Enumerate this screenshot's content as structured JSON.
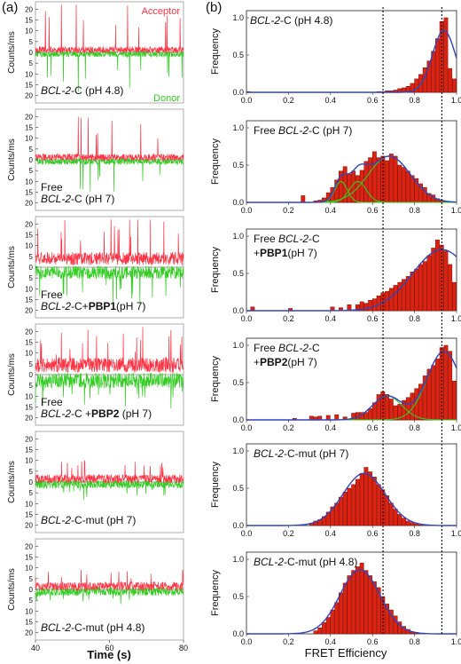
{
  "panel_labels": {
    "a": "(a)",
    "b": "(b)"
  },
  "colors": {
    "acceptor": "#ff3344",
    "donor": "#33cc22",
    "bar": "#dd2211",
    "bar_edge": "#7a1208",
    "fit_total": "#3344bb",
    "fit_component": "#33cc22"
  },
  "left": {
    "ylabel": "Counts/ms",
    "xlabel": "Time (s)",
    "x_ticks": [
      "40",
      "60",
      "80"
    ],
    "y_ticks": [
      "20",
      "15",
      "10",
      "5",
      "0",
      "5",
      "10",
      "15",
      "20"
    ],
    "acceptor_legend": "Acceptor",
    "donor_legend": "Donor",
    "traces": [
      {
        "lines": [
          [
            {
              "t": ""
            },
            {
              "t": "BCL-2",
              "i": true
            },
            {
              "t": "-C (pH 4.8)"
            }
          ]
        ]
      },
      {
        "lines": [
          [
            {
              "t": "Free"
            }
          ],
          [
            {
              "t": "BCL-2",
              "i": true
            },
            {
              "t": "-C (pH 7)"
            }
          ]
        ]
      },
      {
        "lines": [
          [
            {
              "t": "Free"
            }
          ],
          [
            {
              "t": "BCL-2",
              "i": true
            },
            {
              "t": "-C+"
            },
            {
              "t": "PBP1",
              "b": true
            },
            {
              "t": "(pH 7)"
            }
          ]
        ]
      },
      {
        "lines": [
          [
            {
              "t": "Free"
            }
          ],
          [
            {
              "t": "BCL-2",
              "i": true
            },
            {
              "t": "-C +"
            },
            {
              "t": "PBP2",
              "b": true
            },
            {
              "t": " (pH 7)"
            }
          ]
        ]
      },
      {
        "lines": [
          [
            {
              "t": "BCL-2",
              "i": true
            },
            {
              "t": "-C-mut (pH 7)"
            }
          ]
        ]
      },
      {
        "lines": [
          [
            {
              "t": "BCL-2",
              "i": true
            },
            {
              "t": "-C-mut (pH 4.8)"
            }
          ]
        ]
      }
    ]
  },
  "right": {
    "ylabel": "Frequency",
    "xlabel": "FRET Efficiency",
    "x_ticks": [
      "0.0",
      "0.2",
      "0.4",
      "0.6",
      "0.8",
      "1.0"
    ],
    "y_ticks": [
      "0.0",
      "0.5",
      "1.0"
    ],
    "reference_lines": [
      0.65,
      0.93
    ]
  },
  "chart_data": [
    {
      "type": "histogram",
      "title_lines": [
        [
          {
            "t": "BCL-2",
            "i": true
          },
          {
            "t": "-C (pH 4.8)"
          }
        ]
      ],
      "xlim": [
        0,
        1
      ],
      "ylim": [
        0,
        1.0
      ],
      "bin_width": 0.02,
      "bins": [
        0.01,
        0.03,
        0.05,
        0.07,
        0.09,
        0.11,
        0.13,
        0.15,
        0.17,
        0.19,
        0.21,
        0.23,
        0.25,
        0.27,
        0.29,
        0.31,
        0.33,
        0.35,
        0.37,
        0.39,
        0.41,
        0.43,
        0.45,
        0.47,
        0.49,
        0.51,
        0.53,
        0.55,
        0.57,
        0.59,
        0.61,
        0.63,
        0.65,
        0.67,
        0.69,
        0.71,
        0.73,
        0.75,
        0.77,
        0.79,
        0.81,
        0.83,
        0.85,
        0.87,
        0.89,
        0.91,
        0.93,
        0.95,
        0.97,
        0.99
      ],
      "values": [
        0.01,
        0,
        0,
        0,
        0,
        0,
        0,
        0,
        0,
        0,
        0,
        0,
        0,
        0,
        0,
        0,
        0,
        0,
        0,
        0,
        0,
        0,
        0,
        0,
        0,
        0,
        0,
        0,
        0,
        0,
        0,
        0.01,
        0.01,
        0.02,
        0.02,
        0.03,
        0.05,
        0.06,
        0.08,
        0.12,
        0.18,
        0.24,
        0.33,
        0.42,
        0.55,
        0.72,
        0.95,
        1.0,
        0.32,
        0.18
      ],
      "fits": [
        {
          "kind": "total",
          "gaussians": [
            {
              "a": 0.83,
              "mu": 0.94,
              "sigma": 0.055
            }
          ]
        }
      ]
    },
    {
      "type": "histogram",
      "title_lines": [
        [
          {
            "t": "Free "
          },
          {
            "t": "BCL-2",
            "i": true
          },
          {
            "t": "-C (pH 7)"
          }
        ]
      ],
      "xlim": [
        0,
        1
      ],
      "ylim": [
        0,
        1.0
      ],
      "bin_width": 0.02,
      "bins": [
        0.27,
        0.33,
        0.35,
        0.37,
        0.39,
        0.41,
        0.43,
        0.45,
        0.47,
        0.49,
        0.51,
        0.53,
        0.55,
        0.57,
        0.59,
        0.61,
        0.63,
        0.65,
        0.67,
        0.69,
        0.71,
        0.73,
        0.75,
        0.77,
        0.79,
        0.81,
        0.83,
        0.85,
        0.87,
        0.89,
        0.91,
        0.93,
        0.95
      ],
      "values": [
        0.09,
        0.02,
        0.03,
        0.06,
        0.13,
        0.2,
        0.3,
        0.42,
        0.48,
        0.38,
        0.42,
        0.36,
        0.43,
        0.55,
        0.6,
        0.68,
        0.6,
        0.62,
        0.56,
        0.65,
        0.62,
        0.5,
        0.47,
        0.42,
        0.36,
        0.32,
        0.25,
        0.2,
        0.12,
        0.1,
        0.05,
        0.02,
        0.01
      ],
      "fits": [
        {
          "kind": "component",
          "gaussians": [
            {
              "a": 0.28,
              "mu": 0.45,
              "sigma": 0.03
            }
          ]
        },
        {
          "kind": "component",
          "gaussians": [
            {
              "a": 0.28,
              "mu": 0.53,
              "sigma": 0.04
            }
          ]
        },
        {
          "kind": "component",
          "gaussians": [
            {
              "a": 0.62,
              "mu": 0.68,
              "sigma": 0.1
            }
          ]
        },
        {
          "kind": "total",
          "gaussians": [
            {
              "a": 0.28,
              "mu": 0.45,
              "sigma": 0.03
            },
            {
              "a": 0.28,
              "mu": 0.53,
              "sigma": 0.04
            },
            {
              "a": 0.62,
              "mu": 0.68,
              "sigma": 0.1
            }
          ]
        }
      ]
    },
    {
      "type": "histogram",
      "title_lines": [
        [
          {
            "t": "Free "
          },
          {
            "t": "BCL-2",
            "i": true
          },
          {
            "t": "-C"
          }
        ],
        [
          {
            "t": "+"
          },
          {
            "t": "PBP1",
            "b": true
          },
          {
            "t": "(pH 7)"
          }
        ]
      ],
      "xlim": [
        0,
        1
      ],
      "ylim": [
        0,
        1.0
      ],
      "bin_width": 0.02,
      "bins": [
        0.03,
        0.21,
        0.41,
        0.45,
        0.49,
        0.53,
        0.55,
        0.57,
        0.59,
        0.61,
        0.63,
        0.65,
        0.67,
        0.69,
        0.71,
        0.73,
        0.75,
        0.77,
        0.79,
        0.81,
        0.83,
        0.85,
        0.87,
        0.89,
        0.91,
        0.93,
        0.95,
        0.97,
        0.99
      ],
      "values": [
        0.05,
        0.03,
        0.05,
        0.04,
        0.08,
        0.08,
        0.12,
        0.1,
        0.14,
        0.16,
        0.2,
        0.24,
        0.26,
        0.3,
        0.34,
        0.38,
        0.42,
        0.46,
        0.52,
        0.56,
        0.62,
        0.66,
        0.74,
        0.84,
        0.95,
        0.88,
        0.8,
        0.62,
        0.38
      ],
      "fits": [
        {
          "kind": "total",
          "gaussians": [
            {
              "a": 0.82,
              "mu": 0.93,
              "sigma": 0.14
            }
          ]
        }
      ]
    },
    {
      "type": "histogram",
      "title_lines": [
        [
          {
            "t": "Free "
          },
          {
            "t": "BCL-2",
            "i": true
          },
          {
            "t": "-C"
          }
        ],
        [
          {
            "t": "+"
          },
          {
            "t": "PBP2",
            "b": true
          },
          {
            "t": "(pH 7)"
          }
        ]
      ],
      "xlim": [
        0,
        1
      ],
      "ylim": [
        0,
        1.0
      ],
      "bin_width": 0.02,
      "bins": [
        0.23,
        0.31,
        0.33,
        0.35,
        0.39,
        0.43,
        0.47,
        0.51,
        0.53,
        0.55,
        0.57,
        0.59,
        0.61,
        0.63,
        0.65,
        0.67,
        0.69,
        0.71,
        0.73,
        0.75,
        0.77,
        0.79,
        0.81,
        0.83,
        0.85,
        0.87,
        0.89,
        0.91,
        0.93,
        0.95,
        0.97,
        0.99
      ],
      "values": [
        0.02,
        0.05,
        0.04,
        0.05,
        0.06,
        0.07,
        0.04,
        0.09,
        0.1,
        0.1,
        0.1,
        0.15,
        0.23,
        0.34,
        0.38,
        0.34,
        0.28,
        0.19,
        0.21,
        0.26,
        0.3,
        0.36,
        0.42,
        0.48,
        0.59,
        0.68,
        0.73,
        0.82,
        0.97,
        1.0,
        0.92,
        0.52
      ],
      "fits": [
        {
          "kind": "component",
          "gaussians": [
            {
              "a": 0.32,
              "mu": 0.67,
              "sigma": 0.07
            }
          ]
        },
        {
          "kind": "component",
          "gaussians": [
            {
              "a": 0.92,
              "mu": 0.94,
              "sigma": 0.08
            }
          ]
        },
        {
          "kind": "total",
          "gaussians": [
            {
              "a": 0.32,
              "mu": 0.67,
              "sigma": 0.07
            },
            {
              "a": 0.92,
              "mu": 0.94,
              "sigma": 0.08
            }
          ]
        }
      ]
    },
    {
      "type": "histogram",
      "title_lines": [
        [
          {
            "t": "BCL-2",
            "i": true
          },
          {
            "t": "-C-mut (pH 7)"
          }
        ]
      ],
      "xlim": [
        0,
        1
      ],
      "ylim": [
        0,
        1.0
      ],
      "bin_width": 0.02,
      "bins": [
        0.31,
        0.33,
        0.35,
        0.37,
        0.39,
        0.41,
        0.43,
        0.45,
        0.47,
        0.49,
        0.51,
        0.53,
        0.55,
        0.57,
        0.59,
        0.61,
        0.63,
        0.65,
        0.67,
        0.69,
        0.71,
        0.73,
        0.75,
        0.77,
        0.79,
        0.81,
        0.83
      ],
      "values": [
        0.03,
        0.06,
        0.08,
        0.12,
        0.18,
        0.25,
        0.3,
        0.38,
        0.45,
        0.5,
        0.55,
        0.62,
        0.7,
        0.78,
        0.72,
        0.65,
        0.55,
        0.48,
        0.4,
        0.3,
        0.22,
        0.15,
        0.1,
        0.06,
        0.04,
        0.02,
        0.01
      ],
      "fits": [
        {
          "kind": "total",
          "gaussians": [
            {
              "a": 0.7,
              "mu": 0.56,
              "sigma": 0.1
            }
          ]
        }
      ]
    },
    {
      "type": "histogram",
      "title_lines": [
        [
          {
            "t": "BCL-2",
            "i": true
          },
          {
            "t": "-C-mut (pH 4.8)"
          }
        ]
      ],
      "xlim": [
        0,
        1
      ],
      "ylim": [
        0,
        1.0
      ],
      "bin_width": 0.02,
      "bins": [
        0.33,
        0.35,
        0.37,
        0.39,
        0.41,
        0.43,
        0.45,
        0.47,
        0.49,
        0.51,
        0.53,
        0.55,
        0.57,
        0.59,
        0.61,
        0.63,
        0.65,
        0.67,
        0.69,
        0.71,
        0.73,
        0.75,
        0.77,
        0.79,
        0.81
      ],
      "values": [
        0.04,
        0.08,
        0.15,
        0.22,
        0.32,
        0.42,
        0.55,
        0.68,
        0.78,
        0.85,
        0.9,
        0.95,
        0.85,
        0.78,
        0.7,
        0.62,
        0.5,
        0.4,
        0.32,
        0.24,
        0.16,
        0.1,
        0.06,
        0.03,
        0.02
      ],
      "fits": [
        {
          "kind": "total",
          "gaussians": [
            {
              "a": 0.86,
              "mu": 0.54,
              "sigma": 0.095
            }
          ]
        }
      ]
    }
  ]
}
